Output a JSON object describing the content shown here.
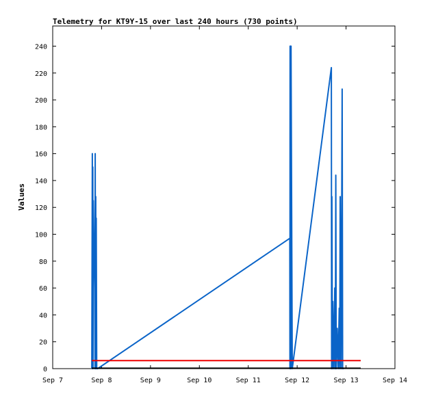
{
  "chart_data": {
    "type": "line",
    "title": "Telemetry for KT9Y-15 over last 240 hours (730 points)",
    "ylabel": "Values",
    "xlabel": "",
    "ylim": [
      0,
      255
    ],
    "xlim": [
      0,
      7
    ],
    "y_ticks": [
      0,
      20,
      40,
      60,
      80,
      100,
      120,
      140,
      160,
      180,
      200,
      220,
      240
    ],
    "x_ticks": [
      {
        "value": 0,
        "label": "Sep 7"
      },
      {
        "value": 1,
        "label": "Sep 8"
      },
      {
        "value": 2,
        "label": "Sep 9"
      },
      {
        "value": 3,
        "label": "Sep 10"
      },
      {
        "value": 4,
        "label": "Sep 11"
      },
      {
        "value": 5,
        "label": "Sep 12"
      },
      {
        "value": 6,
        "label": "Sep 13"
      },
      {
        "value": 7,
        "label": "Sep 14"
      }
    ],
    "series": [
      {
        "color": "#0a64c8",
        "x": [
          0.8,
          0.81,
          0.815,
          0.82,
          0.825,
          0.83,
          0.84,
          0.85,
          0.86,
          0.865,
          0.87,
          0.875,
          0.88,
          0.885,
          0.89,
          0.9,
          0.92,
          4.85,
          4.852,
          4.855,
          4.857,
          4.86,
          4.862,
          4.865,
          4.867,
          4.87,
          4.872,
          4.875,
          4.9,
          5.7,
          5.705,
          5.71,
          5.72,
          5.73,
          5.75,
          5.77,
          5.78,
          5.79,
          5.8,
          5.82,
          5.84,
          5.86,
          5.87,
          5.88,
          5.9,
          5.92,
          5.93,
          5.95
        ],
        "y": [
          0,
          160,
          0,
          150,
          0,
          125,
          100,
          80,
          60,
          0,
          160,
          0,
          128,
          0,
          112,
          0,
          0,
          97,
          0,
          240,
          0,
          240,
          0,
          240,
          0,
          240,
          0,
          240,
          0,
          224,
          0,
          128,
          0,
          50,
          0,
          60,
          0,
          144,
          0,
          30,
          0,
          45,
          0,
          128,
          0,
          208,
          0,
          0
        ]
      },
      {
        "color": "#ee0000",
        "x": [
          0.8,
          6.3
        ],
        "y": [
          6,
          6
        ]
      },
      {
        "color": "#000000",
        "x": [
          0.8,
          6.3
        ],
        "y": [
          0.3,
          0.3
        ]
      }
    ]
  }
}
